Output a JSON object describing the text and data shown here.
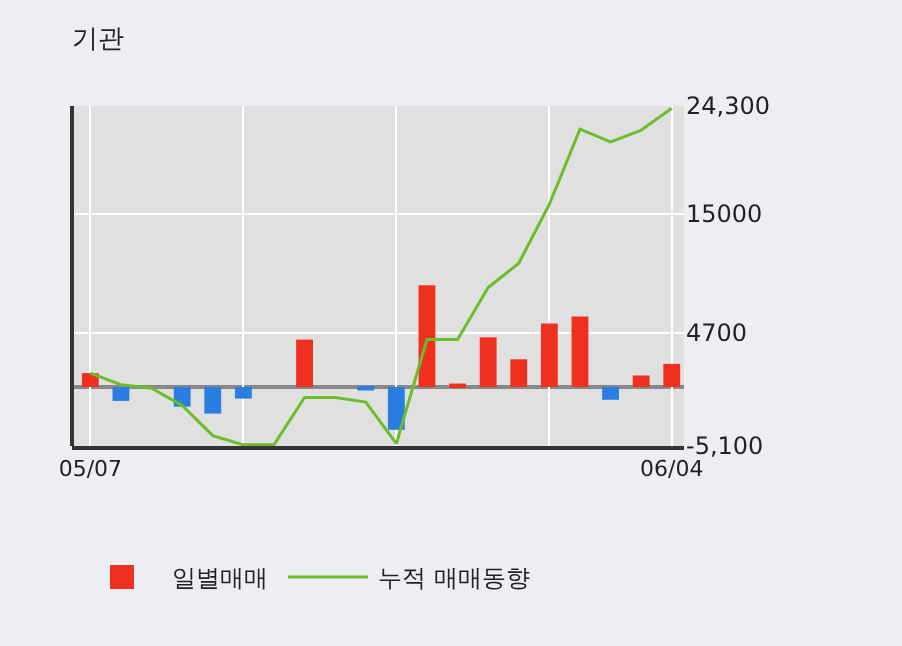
{
  "chart_data": {
    "type": "bar",
    "title": "기관",
    "categories": [
      "05/07",
      null,
      null,
      null,
      null,
      null,
      null,
      null,
      null,
      null,
      null,
      null,
      null,
      null,
      null,
      null,
      null,
      null,
      null,
      "06/04"
    ],
    "series": [
      {
        "name": "일별매매",
        "colors": [
          "#f0301e",
          "#2a7de1",
          "#2a7de1",
          "#2a7de1",
          "#2a7de1",
          "#2a7de1",
          "#f0301e",
          "#f0301e",
          "#f0301e",
          "#2a7de1",
          "#2a7de1",
          "#f0301e",
          "#f0301e",
          "#f0301e",
          "#f0301e",
          "#f0301e",
          "#f0301e",
          "#2a7de1",
          "#f0301e",
          "#f0301e"
        ],
        "values": [
          1200,
          -1200,
          0,
          -1700,
          -2300,
          -1000,
          0,
          4100,
          0,
          -300,
          -3700,
          8800,
          300,
          4300,
          2400,
          5500,
          6100,
          -1100,
          1000,
          2000
        ]
      },
      {
        "name": "누적 매매동향",
        "type": "line",
        "color": "#6cbd2a",
        "values": [
          1200,
          200,
          -100,
          -1600,
          -4200,
          -5000,
          -5000,
          -900,
          -900,
          -1300,
          -4900,
          4100,
          4100,
          8600,
          10700,
          15800,
          22300,
          21200,
          22200,
          24100
        ]
      }
    ],
    "ylim": [
      -5100,
      24300
    ],
    "yticks": [
      {
        "value": 24300,
        "label": "24,300"
      },
      15000,
      4700,
      {
        "value": -5100,
        "label": "-5,100"
      }
    ],
    "ref_lines": [
      {
        "axis": "y",
        "value": 0,
        "color": "#888888"
      }
    ],
    "grid": true,
    "legend": "bottom",
    "marker": "none",
    "line_style": "solid"
  }
}
